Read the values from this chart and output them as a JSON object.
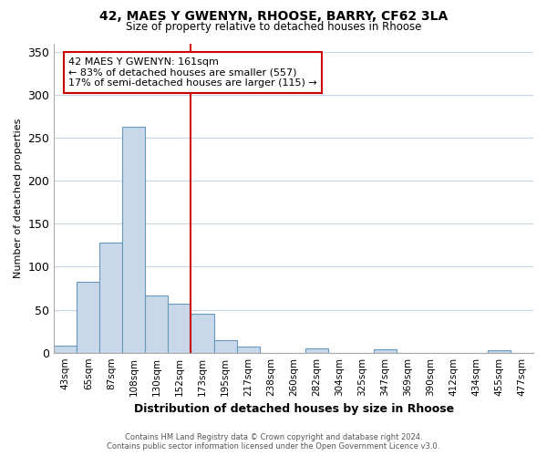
{
  "title1": "42, MAES Y GWENYN, RHOOSE, BARRY, CF62 3LA",
  "title2": "Size of property relative to detached houses in Rhoose",
  "xlabel": "Distribution of detached houses by size in Rhoose",
  "ylabel": "Number of detached properties",
  "bins": [
    "43sqm",
    "65sqm",
    "87sqm",
    "108sqm",
    "130sqm",
    "152sqm",
    "173sqm",
    "195sqm",
    "217sqm",
    "238sqm",
    "260sqm",
    "282sqm",
    "304sqm",
    "325sqm",
    "347sqm",
    "369sqm",
    "390sqm",
    "412sqm",
    "434sqm",
    "455sqm",
    "477sqm"
  ],
  "values": [
    8,
    82,
    128,
    263,
    67,
    57,
    45,
    15,
    7,
    0,
    0,
    5,
    0,
    0,
    4,
    0,
    0,
    0,
    0,
    3,
    0
  ],
  "bar_color": "#c8d8ea",
  "bar_edge_color": "#6699bb",
  "bar_linewidth": 0.8,
  "red_line_bin": 6,
  "red_line_color": "#cc0000",
  "ylim": [
    0,
    360
  ],
  "yticks": [
    0,
    50,
    100,
    150,
    200,
    250,
    300,
    350
  ],
  "annotation_lines": [
    "42 MAES Y GWENYN: 161sqm",
    "← 83% of detached houses are smaller (557)",
    "17% of semi-detached houses are larger (115) →"
  ],
  "annotation_box_color": "white",
  "annotation_box_edge_color": "#cc0000",
  "footer1": "Contains HM Land Registry data © Crown copyright and database right 2024.",
  "footer2": "Contains public sector information licensed under the Open Government Licence v3.0.",
  "bg_color": "white",
  "plot_bg_color": "white",
  "grid_color": "#c8d4e0"
}
